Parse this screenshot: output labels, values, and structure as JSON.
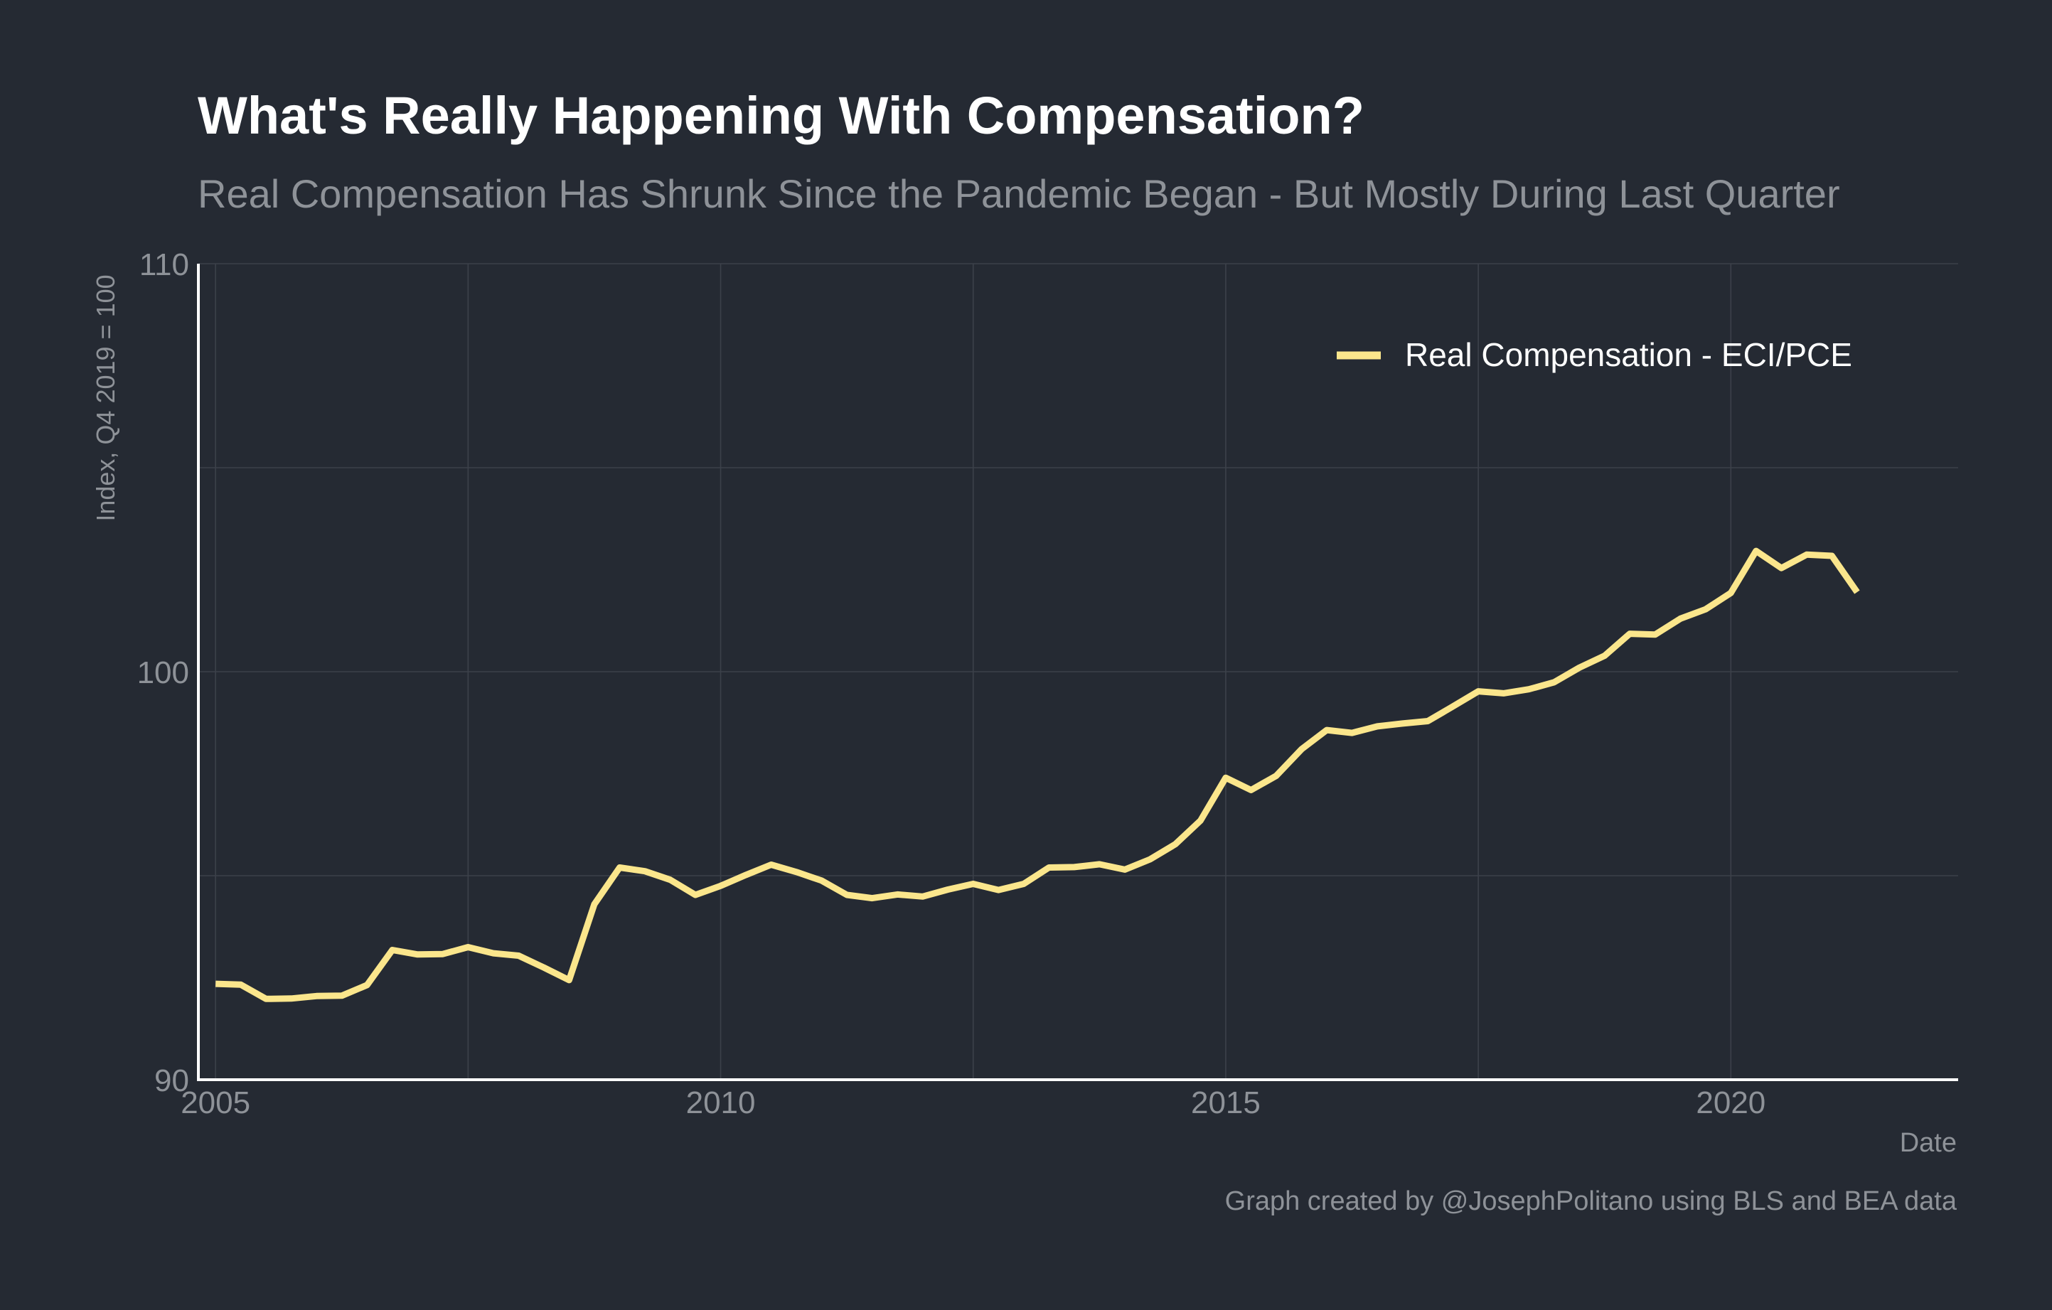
{
  "colors": {
    "background": "#252a33",
    "series": "#fbe68c",
    "title": "#ffffff",
    "muted": "#8e9298",
    "grid": "#3c414a",
    "axis": "#ffffff"
  },
  "chart_data": {
    "type": "line",
    "title": "What's Really Happening With Compensation?",
    "subtitle": "Real Compensation Has Shrunk Since the Pandemic Began - But Mostly During Last Quarter",
    "xlabel": "Date",
    "ylabel": "Index, Q4 2019 = 100",
    "caption": "Graph created by @JosephPolitano using BLS and BEA data",
    "xlim": [
      2004.83,
      2022.25
    ],
    "ylim": [
      90,
      110
    ],
    "x_ticks": [
      2005,
      2010,
      2015,
      2020
    ],
    "y_ticks": [
      90,
      100,
      110
    ],
    "y_gridlines": [
      90,
      95,
      100,
      105,
      110
    ],
    "x_gridlines": [
      2005,
      2007.5,
      2010,
      2012.5,
      2015,
      2017.5,
      2020
    ],
    "grid": true,
    "legend_position": "top-right",
    "series": [
      {
        "name": "Real Compensation - ECI/PCE",
        "x": [
          2005.0,
          2005.25,
          2005.5,
          2005.75,
          2006.0,
          2006.25,
          2006.5,
          2006.75,
          2007.0,
          2007.25,
          2007.5,
          2007.75,
          2008.0,
          2008.25,
          2008.5,
          2008.75,
          2009.0,
          2009.25,
          2009.5,
          2009.75,
          2010.0,
          2010.25,
          2010.5,
          2010.75,
          2011.0,
          2011.25,
          2011.5,
          2011.75,
          2012.0,
          2012.25,
          2012.5,
          2012.75,
          2013.0,
          2013.25,
          2013.5,
          2013.75,
          2014.0,
          2014.25,
          2014.5,
          2014.75,
          2015.0,
          2015.25,
          2015.5,
          2015.75,
          2016.0,
          2016.25,
          2016.5,
          2016.75,
          2017.0,
          2017.25,
          2017.5,
          2017.75,
          2018.0,
          2018.25,
          2018.5,
          2018.75,
          2019.0,
          2019.25,
          2019.5,
          2019.75,
          2020.0,
          2020.25,
          2020.5,
          2020.75,
          2021.0,
          2021.25
        ],
        "values": [
          92.35,
          92.33,
          91.98,
          91.99,
          92.05,
          92.06,
          92.32,
          93.18,
          93.07,
          93.08,
          93.25,
          93.1,
          93.04,
          92.75,
          92.44,
          94.3,
          95.2,
          95.11,
          94.9,
          94.53,
          94.75,
          95.02,
          95.27,
          95.09,
          94.88,
          94.53,
          94.45,
          94.54,
          94.49,
          94.66,
          94.8,
          94.65,
          94.8,
          95.2,
          95.21,
          95.28,
          95.15,
          95.4,
          95.77,
          96.35,
          97.4,
          97.1,
          97.45,
          98.1,
          98.57,
          98.5,
          98.66,
          98.73,
          98.79,
          99.15,
          99.52,
          99.47,
          99.57,
          99.74,
          100.1,
          100.39,
          100.93,
          100.91,
          101.3,
          101.53,
          101.93,
          102.96,
          102.54,
          102.87,
          102.84,
          101.95
        ]
      }
    ]
  }
}
